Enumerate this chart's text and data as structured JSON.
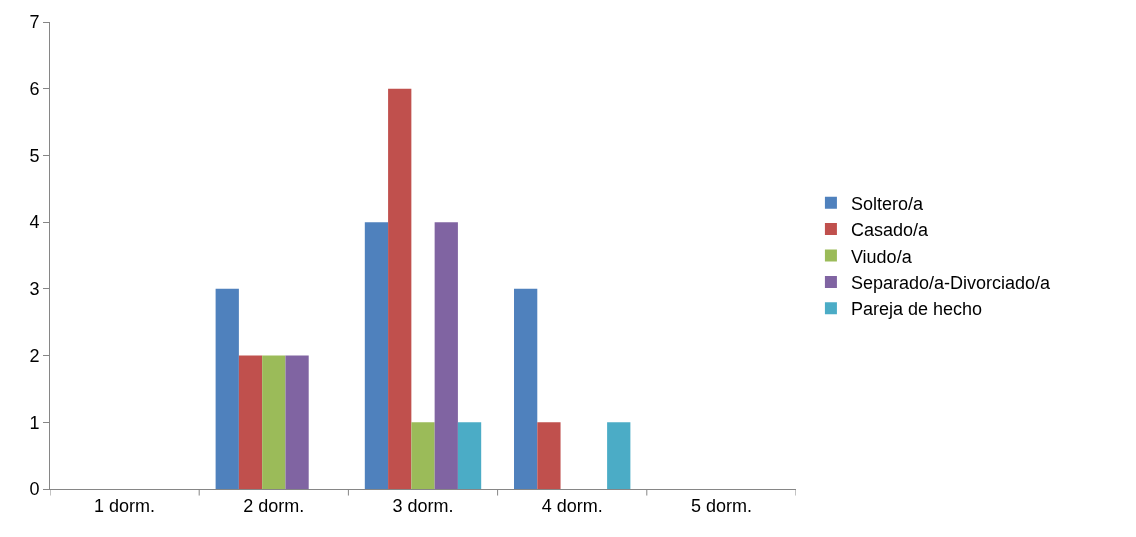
{
  "chart_data": {
    "type": "bar",
    "categories": [
      "1 dorm.",
      "2 dorm.",
      "3 dorm.",
      "4 dorm.",
      "5 dorm."
    ],
    "series": [
      {
        "name": "Soltero/a",
        "color": "#4f81bd",
        "values": [
          0,
          3,
          4,
          3,
          0
        ]
      },
      {
        "name": "Casado/a",
        "color": "#c0504d",
        "values": [
          0,
          2,
          6,
          1,
          0
        ]
      },
      {
        "name": "Viudo/a",
        "color": "#9bbb59",
        "values": [
          0,
          2,
          1,
          0,
          0
        ]
      },
      {
        "name": "Separado/a-Divorciado/a",
        "color": "#8064a2",
        "values": [
          0,
          2,
          4,
          0,
          0
        ]
      },
      {
        "name": "Pareja de hecho",
        "color": "#4bacc6",
        "values": [
          0,
          0,
          1,
          1,
          0
        ]
      }
    ],
    "ylim": [
      0,
      7
    ],
    "yticks": [
      0,
      1,
      2,
      3,
      4,
      5,
      6,
      7
    ],
    "grid": false,
    "legend": "right"
  }
}
